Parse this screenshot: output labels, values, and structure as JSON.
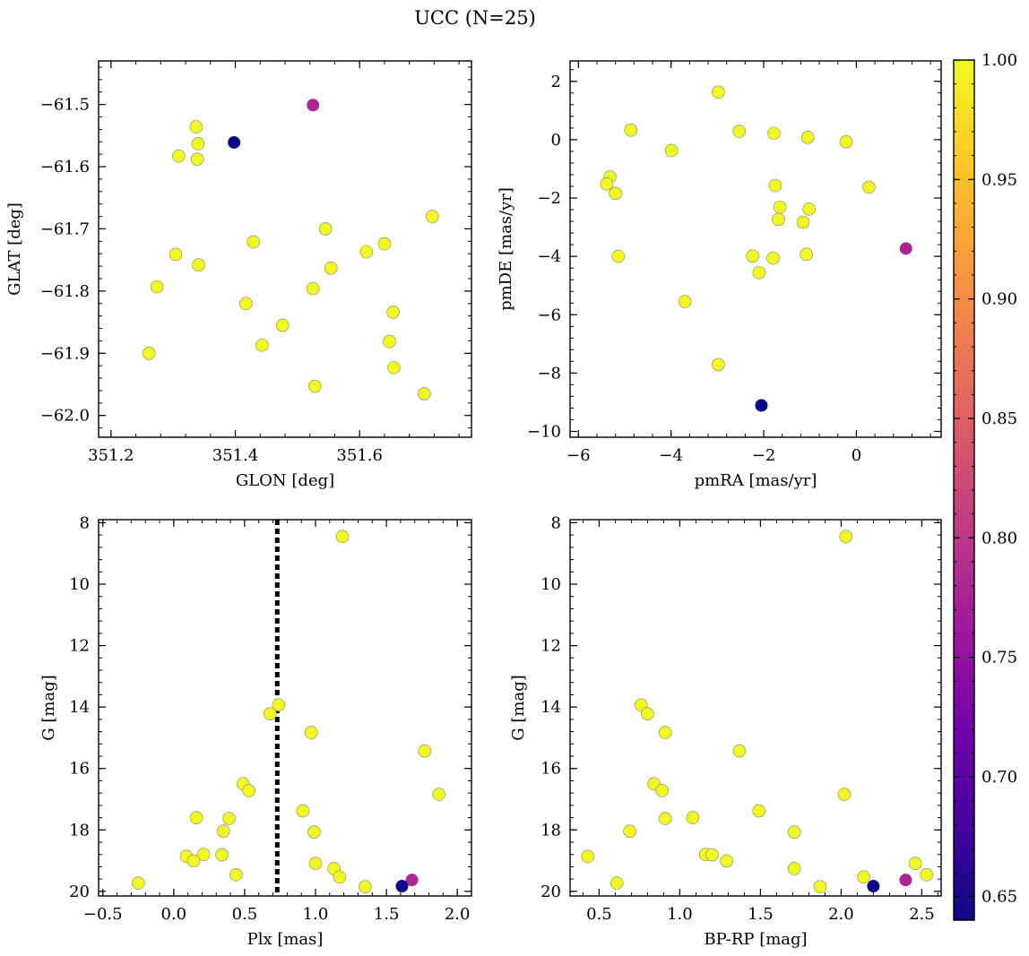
{
  "title": "UCC (N=25)",
  "colors": {
    "marker_edge": "#7f7f7f",
    "axis": "#000000",
    "dashed_line": "#000000",
    "colormap": [
      "#0d0887",
      "#46039f",
      "#7201a8",
      "#9c179e",
      "#bd3786",
      "#d8576b",
      "#ed7953",
      "#fb9f3a",
      "#fdca26",
      "#f0f921"
    ]
  },
  "colorbar": {
    "colormap": "plasma",
    "range": [
      0.64,
      1.0
    ],
    "ticks": [
      0.65,
      0.7,
      0.75,
      0.8,
      0.85,
      0.9,
      0.95,
      1.0
    ],
    "tick_labels": [
      "0.65",
      "0.70",
      "0.75",
      "0.80",
      "0.85",
      "0.90",
      "0.95",
      "1.00"
    ]
  },
  "chart_data": [
    {
      "type": "scatter",
      "xlabel": "GLON [deg]",
      "ylabel": "GLAT [deg]",
      "xlim": [
        351.18,
        351.78
      ],
      "ylim": [
        -62.035,
        -61.43
      ],
      "xticks": [
        351.2,
        351.4,
        351.6
      ],
      "xtick_labels": [
        "351.2",
        "351.4",
        "351.6"
      ],
      "yticks": [
        -62.0,
        -61.9,
        -61.8,
        -61.7,
        -61.6,
        -61.5
      ],
      "ytick_labels": [
        "−62.0",
        "−61.9",
        "−61.8",
        "−61.7",
        "−61.6",
        "−61.5"
      ],
      "points": [
        {
          "x": 351.525,
          "y": -61.501,
          "p": 0.78
        },
        {
          "x": 351.398,
          "y": -61.561,
          "p": 0.64
        },
        {
          "x": 351.337,
          "y": -61.536,
          "p": 1.0
        },
        {
          "x": 351.34,
          "y": -61.563,
          "p": 1.0
        },
        {
          "x": 351.339,
          "y": -61.588,
          "p": 1.0
        },
        {
          "x": 351.309,
          "y": -61.583,
          "p": 1.0
        },
        {
          "x": 351.717,
          "y": -61.68,
          "p": 1.0
        },
        {
          "x": 351.545,
          "y": -61.7,
          "p": 1.0
        },
        {
          "x": 351.429,
          "y": -61.721,
          "p": 1.0
        },
        {
          "x": 351.64,
          "y": -61.724,
          "p": 1.0
        },
        {
          "x": 351.611,
          "y": -61.737,
          "p": 1.0
        },
        {
          "x": 351.304,
          "y": -61.741,
          "p": 1.0
        },
        {
          "x": 351.341,
          "y": -61.758,
          "p": 1.0
        },
        {
          "x": 351.554,
          "y": -61.763,
          "p": 1.0
        },
        {
          "x": 351.274,
          "y": -61.793,
          "p": 1.0
        },
        {
          "x": 351.525,
          "y": -61.796,
          "p": 1.0
        },
        {
          "x": 351.417,
          "y": -61.82,
          "p": 1.0
        },
        {
          "x": 351.654,
          "y": -61.834,
          "p": 1.0
        },
        {
          "x": 351.476,
          "y": -61.855,
          "p": 1.0
        },
        {
          "x": 351.648,
          "y": -61.881,
          "p": 1.0
        },
        {
          "x": 351.443,
          "y": -61.887,
          "p": 1.0
        },
        {
          "x": 351.261,
          "y": -61.9,
          "p": 1.0
        },
        {
          "x": 351.655,
          "y": -61.923,
          "p": 1.0
        },
        {
          "x": 351.528,
          "y": -61.953,
          "p": 1.0
        },
        {
          "x": 351.704,
          "y": -61.965,
          "p": 1.0
        }
      ]
    },
    {
      "type": "scatter",
      "xlabel": "pmRA [mas/yr]",
      "ylabel": "pmDE [mas/yr]",
      "xlim": [
        -6.18,
        1.83
      ],
      "ylim": [
        -10.2,
        2.7
      ],
      "xticks": [
        -6,
        -4,
        -2,
        0
      ],
      "xtick_labels": [
        "−6",
        "−4",
        "−2",
        "0"
      ],
      "yticks": [
        -10,
        -8,
        -6,
        -4,
        -2,
        0,
        2
      ],
      "ytick_labels": [
        "−10",
        "−8",
        "−6",
        "−4",
        "−2",
        "0",
        "2"
      ],
      "points": [
        {
          "x": 1.07,
          "y": -3.73,
          "p": 0.78
        },
        {
          "x": -2.05,
          "y": -9.11,
          "p": 0.64
        },
        {
          "x": -2.98,
          "y": 1.63,
          "p": 1.0
        },
        {
          "x": -4.87,
          "y": 0.33,
          "p": 1.0
        },
        {
          "x": -2.53,
          "y": 0.29,
          "p": 1.0
        },
        {
          "x": -1.78,
          "y": 0.22,
          "p": 1.0
        },
        {
          "x": -1.05,
          "y": 0.08,
          "p": 1.0
        },
        {
          "x": -0.22,
          "y": -0.07,
          "p": 1.0
        },
        {
          "x": -3.99,
          "y": -0.37,
          "p": 1.0
        },
        {
          "x": -5.32,
          "y": -1.28,
          "p": 1.0
        },
        {
          "x": -5.39,
          "y": -1.52,
          "p": 1.0
        },
        {
          "x": -1.75,
          "y": -1.57,
          "p": 1.0
        },
        {
          "x": 0.27,
          "y": -1.63,
          "p": 1.0
        },
        {
          "x": -5.2,
          "y": -1.84,
          "p": 1.0
        },
        {
          "x": -1.65,
          "y": -2.31,
          "p": 1.0
        },
        {
          "x": -1.02,
          "y": -2.38,
          "p": 1.0
        },
        {
          "x": -1.68,
          "y": -2.73,
          "p": 1.0
        },
        {
          "x": -1.15,
          "y": -2.83,
          "p": 1.0
        },
        {
          "x": -5.14,
          "y": -4.0,
          "p": 1.0
        },
        {
          "x": -2.24,
          "y": -3.99,
          "p": 1.0
        },
        {
          "x": -1.08,
          "y": -3.93,
          "p": 1.0
        },
        {
          "x": -1.8,
          "y": -4.06,
          "p": 1.0
        },
        {
          "x": -2.1,
          "y": -4.56,
          "p": 1.0
        },
        {
          "x": -3.7,
          "y": -5.55,
          "p": 1.0
        },
        {
          "x": -2.98,
          "y": -7.71,
          "p": 1.0
        }
      ]
    },
    {
      "type": "scatter",
      "xlabel": "Plx [mas]",
      "ylabel": "G [mag]",
      "xlim": [
        -0.53,
        2.1
      ],
      "ylim": [
        20.15,
        7.9
      ],
      "xticks": [
        -0.5,
        0.0,
        0.5,
        1.0,
        1.5,
        2.0
      ],
      "xtick_labels": [
        "−0.5",
        "0.0",
        "0.5",
        "1.0",
        "1.5",
        "2.0"
      ],
      "yticks": [
        8,
        10,
        12,
        14,
        16,
        18,
        20
      ],
      "ytick_labels": [
        "8",
        "10",
        "12",
        "14",
        "16",
        "18",
        "20"
      ],
      "vline": 0.73,
      "points": [
        {
          "x": 1.68,
          "y": 19.63,
          "p": 0.78
        },
        {
          "x": 1.61,
          "y": 19.83,
          "p": 0.64
        },
        {
          "x": 1.19,
          "y": 8.45,
          "p": 1.0
        },
        {
          "x": 0.74,
          "y": 13.93,
          "p": 1.0
        },
        {
          "x": 0.68,
          "y": 14.22,
          "p": 1.0
        },
        {
          "x": 0.97,
          "y": 14.83,
          "p": 1.0
        },
        {
          "x": 1.77,
          "y": 15.43,
          "p": 1.0
        },
        {
          "x": 0.49,
          "y": 16.5,
          "p": 1.0
        },
        {
          "x": 0.53,
          "y": 16.72,
          "p": 1.0
        },
        {
          "x": 1.87,
          "y": 16.84,
          "p": 1.0
        },
        {
          "x": 0.91,
          "y": 17.38,
          "p": 1.0
        },
        {
          "x": 0.16,
          "y": 17.6,
          "p": 1.0
        },
        {
          "x": 0.39,
          "y": 17.63,
          "p": 1.0
        },
        {
          "x": 0.35,
          "y": 18.04,
          "p": 1.0
        },
        {
          "x": 0.99,
          "y": 18.07,
          "p": 1.0
        },
        {
          "x": 0.21,
          "y": 18.8,
          "p": 1.0
        },
        {
          "x": 0.34,
          "y": 18.81,
          "p": 1.0
        },
        {
          "x": 0.09,
          "y": 18.86,
          "p": 1.0
        },
        {
          "x": 0.14,
          "y": 19.01,
          "p": 1.0
        },
        {
          "x": 1.0,
          "y": 19.09,
          "p": 1.0
        },
        {
          "x": 1.13,
          "y": 19.26,
          "p": 1.0
        },
        {
          "x": 0.44,
          "y": 19.46,
          "p": 1.0
        },
        {
          "x": 1.17,
          "y": 19.53,
          "p": 1.0
        },
        {
          "x": -0.25,
          "y": 19.73,
          "p": 1.0
        },
        {
          "x": 1.35,
          "y": 19.85,
          "p": 1.0
        }
      ]
    },
    {
      "type": "scatter",
      "xlabel": "BP-RP [mag]",
      "ylabel": "G [mag]",
      "xlim": [
        0.32,
        2.62
      ],
      "ylim": [
        20.15,
        7.9
      ],
      "xticks": [
        0.5,
        1.0,
        1.5,
        2.0,
        2.5
      ],
      "xtick_labels": [
        "0.5",
        "1.0",
        "1.5",
        "2.0",
        "2.5"
      ],
      "yticks": [
        8,
        10,
        12,
        14,
        16,
        18,
        20
      ],
      "ytick_labels": [
        "8",
        "10",
        "12",
        "14",
        "16",
        "18",
        "20"
      ],
      "points": [
        {
          "x": 2.4,
          "y": 19.63,
          "p": 0.78
        },
        {
          "x": 2.2,
          "y": 19.83,
          "p": 0.64
        },
        {
          "x": 2.03,
          "y": 8.45,
          "p": 1.0
        },
        {
          "x": 0.76,
          "y": 13.93,
          "p": 1.0
        },
        {
          "x": 0.8,
          "y": 14.22,
          "p": 1.0
        },
        {
          "x": 0.91,
          "y": 14.83,
          "p": 1.0
        },
        {
          "x": 1.37,
          "y": 15.43,
          "p": 1.0
        },
        {
          "x": 0.84,
          "y": 16.5,
          "p": 1.0
        },
        {
          "x": 0.89,
          "y": 16.72,
          "p": 1.0
        },
        {
          "x": 2.02,
          "y": 16.84,
          "p": 1.0
        },
        {
          "x": 1.49,
          "y": 17.38,
          "p": 1.0
        },
        {
          "x": 1.08,
          "y": 17.6,
          "p": 1.0
        },
        {
          "x": 0.91,
          "y": 17.63,
          "p": 1.0
        },
        {
          "x": 0.69,
          "y": 18.04,
          "p": 1.0
        },
        {
          "x": 1.71,
          "y": 18.07,
          "p": 1.0
        },
        {
          "x": 1.16,
          "y": 18.8,
          "p": 1.0
        },
        {
          "x": 1.2,
          "y": 18.81,
          "p": 1.0
        },
        {
          "x": 0.43,
          "y": 18.86,
          "p": 1.0
        },
        {
          "x": 1.29,
          "y": 19.01,
          "p": 1.0
        },
        {
          "x": 2.46,
          "y": 19.09,
          "p": 1.0
        },
        {
          "x": 1.71,
          "y": 19.26,
          "p": 1.0
        },
        {
          "x": 2.53,
          "y": 19.46,
          "p": 1.0
        },
        {
          "x": 2.14,
          "y": 19.53,
          "p": 1.0
        },
        {
          "x": 0.61,
          "y": 19.73,
          "p": 1.0
        },
        {
          "x": 1.87,
          "y": 19.85,
          "p": 1.0
        }
      ]
    }
  ]
}
